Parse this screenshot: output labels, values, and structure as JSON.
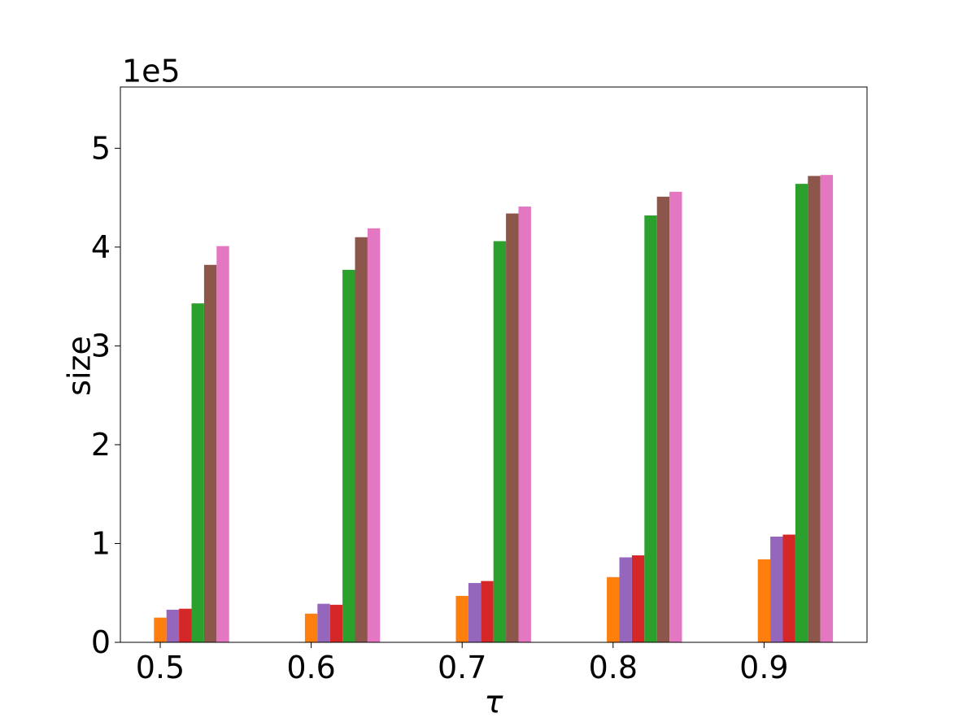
{
  "chart_data": {
    "type": "bar",
    "y_offset_label": "1e5",
    "ylabel": "size",
    "xlabel": "τ",
    "categories": [
      "0.5",
      "0.6",
      "0.7",
      "0.8",
      "0.9"
    ],
    "series": [
      {
        "color": "#ff7f0e",
        "values": [
          0.25,
          0.29,
          0.47,
          0.66,
          0.84
        ]
      },
      {
        "color": "#9467bd",
        "values": [
          0.33,
          0.39,
          0.6,
          0.86,
          1.07
        ]
      },
      {
        "color": "#d62728",
        "values": [
          0.34,
          0.38,
          0.62,
          0.88,
          1.09
        ]
      },
      {
        "color": "#2ca02c",
        "values": [
          3.43,
          3.77,
          4.06,
          4.32,
          4.64
        ]
      },
      {
        "color": "#8c564b",
        "values": [
          3.82,
          4.1,
          4.34,
          4.51,
          4.72
        ]
      },
      {
        "color": "#e377c2",
        "values": [
          4.01,
          4.19,
          4.41,
          4.56,
          4.73
        ]
      }
    ],
    "ylim": [
      0,
      5.62
    ],
    "yticks": [
      0,
      1,
      2,
      3,
      4,
      5
    ],
    "grid": false
  }
}
